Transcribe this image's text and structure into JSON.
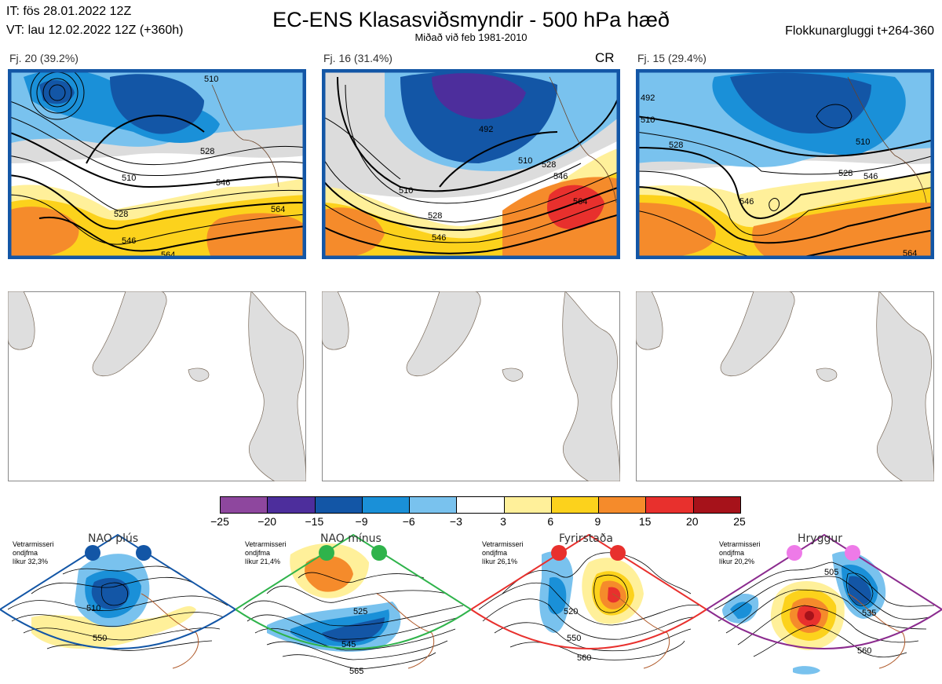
{
  "header": {
    "it": "IT: fös 28.01.2022 12Z",
    "vt": "VT: lau 12.02.2022 12Z  (+360h)",
    "title": "EC-ENS Klasasviðsmyndir - 500 hPa hæð",
    "subtitle": "Miðað við feb 1981-2010",
    "window": "Flokkunargluggi t+264-360"
  },
  "clusters": [
    {
      "label": "Fj. 20 (39.2%)",
      "tag": "",
      "contours": [
        "510",
        "528",
        "546",
        "564",
        "528",
        "546",
        "510",
        "564"
      ]
    },
    {
      "label": "Fj. 16 (31.4%)",
      "tag": "CR",
      "contours": [
        "492",
        "510",
        "528",
        "546",
        "564",
        "510",
        "528",
        "546"
      ]
    },
    {
      "label": "Fj. 15 (29.4%)",
      "tag": "",
      "contours": [
        "492",
        "510",
        "528",
        "546",
        "510",
        "528",
        "546",
        "564"
      ]
    }
  ],
  "colorbar": {
    "labels": [
      "−25",
      "−20",
      "−15",
      "−9",
      "−6",
      "−3",
      "3",
      "6",
      "9",
      "15",
      "20",
      "25"
    ],
    "colors": [
      "#8e479e",
      "#4d2e9c",
      "#1356a6",
      "#1a90d8",
      "#79c2ee",
      "#ffffff",
      "#fff09a",
      "#fcd21c",
      "#f58b2b",
      "#e8302d",
      "#a6121a"
    ]
  },
  "regimes": [
    {
      "title": "NAO plús",
      "note": [
        "Vetrarmisseri",
        "ondjfma",
        "líkur 32,3%"
      ],
      "dot": "#1356a6",
      "border": "#1356a6",
      "contours": [
        "510",
        "550"
      ]
    },
    {
      "title": "NAO mínus",
      "note": [
        "Vetrarmisseri",
        "ondjfma",
        "líkur 21,4%"
      ],
      "dot": "#2fb34b",
      "border": "#2fb34b",
      "contours": [
        "525",
        "545",
        "565"
      ]
    },
    {
      "title": "Fyrirstaða",
      "note": [
        "Vetrarmisseri",
        "ondjfma",
        "líkur 26,1%"
      ],
      "dot": "#e8302d",
      "border": "#e8302d",
      "contours": [
        "520",
        "550",
        "560"
      ]
    },
    {
      "title": "Hryggur",
      "note": [
        "Vetrarmisseri",
        "ondjfma",
        "líkur 20,2%"
      ],
      "dot": "#ee7ae8",
      "border": "#8b2b8e",
      "contours": [
        "505",
        "535",
        "560"
      ]
    }
  ]
}
